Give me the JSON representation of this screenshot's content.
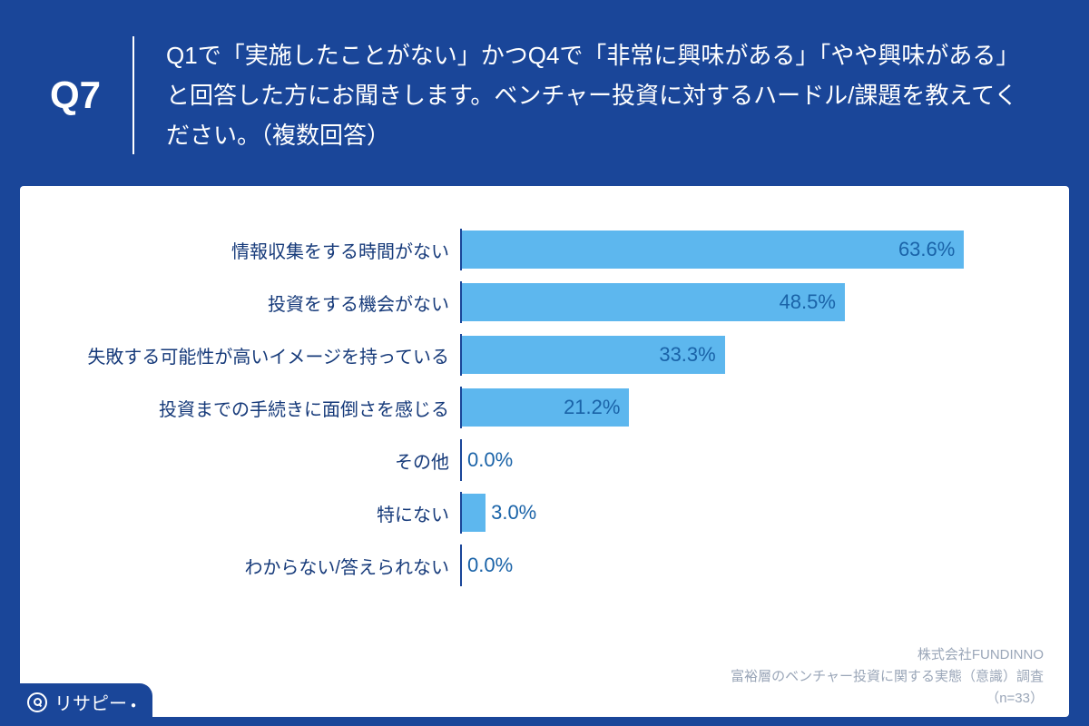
{
  "header": {
    "question_number": "Q7",
    "question_text": "Q1で「実施したことがない」かつQ4で「非常に興味がある」「やや興味がある」と回答した方にお聞きします。ベンチャー投資に対するハードル/課題を教えてください。（複数回答）",
    "background_color": "#1a4699",
    "text_color": "#ffffff",
    "divider_color": "#ffffff"
  },
  "chart": {
    "type": "bar-horizontal",
    "background_color": "#ffffff",
    "axis_color": "#1a4699",
    "bar_color": "#5db7ee",
    "label_color": "#163a7a",
    "value_color": "#1a63a8",
    "label_fontsize": 20,
    "value_fontsize": 22,
    "max_value": 70,
    "rows": [
      {
        "label": "情報収集をする時間がない",
        "value": 63.6,
        "display": "63.6%"
      },
      {
        "label": "投資をする機会がない",
        "value": 48.5,
        "display": "48.5%"
      },
      {
        "label": "失敗する可能性が高いイメージを持っている",
        "value": 33.3,
        "display": "33.3%"
      },
      {
        "label": "投資までの手続きに面倒さを感じる",
        "value": 21.2,
        "display": "21.2%"
      },
      {
        "label": "その他",
        "value": 0.0,
        "display": "0.0%"
      },
      {
        "label": "特にない",
        "value": 3.0,
        "display": "3.0%"
      },
      {
        "label": "わからない/答えられない",
        "value": 0.0,
        "display": "0.0%"
      }
    ]
  },
  "credits": {
    "line1": "株式会社FUNDINNO",
    "line2": "富裕層のベンチャー投資に関する実態（意識）調査",
    "line3": "（n=33）",
    "color": "#9aa6b8"
  },
  "brand": {
    "name": "リサピー",
    "background_color": "#1a4699",
    "text_color": "#ffffff"
  }
}
